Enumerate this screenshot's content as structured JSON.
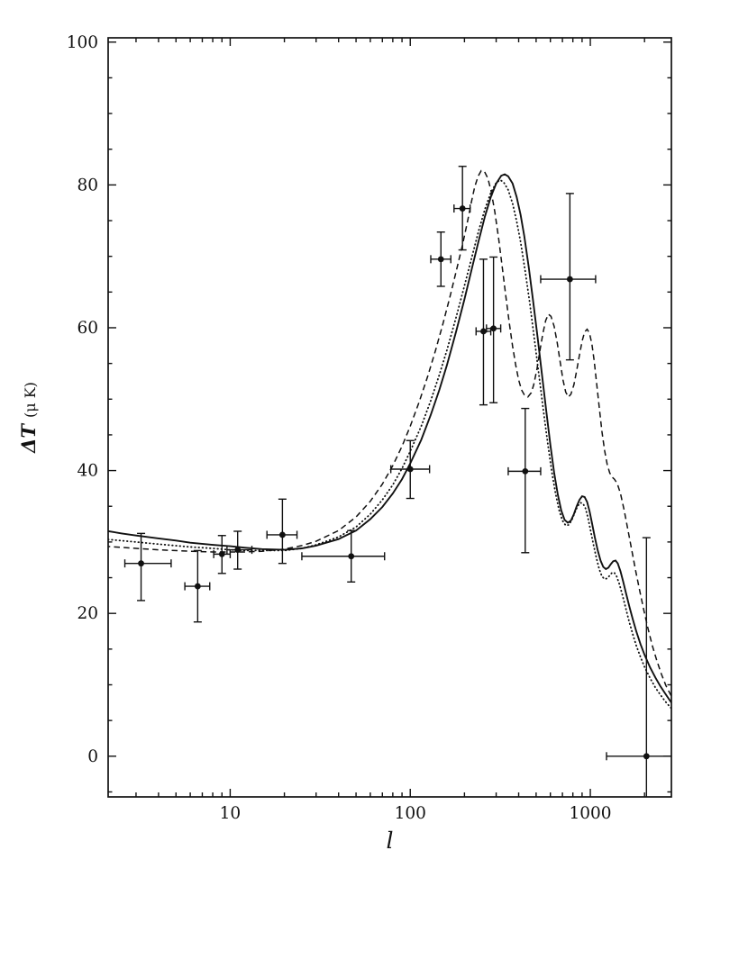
{
  "figure": {
    "background": "#ffffff",
    "ink": "#111111"
  },
  "chart_data": {
    "type": "scatter",
    "title": "",
    "xlabel": "l",
    "ylabel": "ΔT (μ K)",
    "ylabel_main": "ΔT",
    "ylabel_units": "(μ K)",
    "x_scale": "log",
    "xlim": [
      2.1,
      2820
    ],
    "ylim": [
      -5.7,
      100.6
    ],
    "x_major_ticks": [
      10,
      100,
      1000
    ],
    "x_major_tick_labels": [
      "10",
      "100",
      "1000"
    ],
    "y_major_ticks": [
      0,
      20,
      40,
      60,
      80,
      100
    ],
    "y_major_tick_labels": [
      "0",
      "20",
      "40",
      "60",
      "80",
      "100"
    ],
    "y_minor_step": 5,
    "grid": false,
    "legend": null,
    "data_points": [
      {
        "l": 3.2,
        "l_lo": 2.6,
        "l_hi": 4.7,
        "dT": 27.0,
        "dT_lo": 21.8,
        "dT_hi": 31.2
      },
      {
        "l": 6.6,
        "l_lo": 5.6,
        "l_hi": 7.7,
        "dT": 23.8,
        "dT_lo": 18.8,
        "dT_hi": 28.8
      },
      {
        "l": 9.0,
        "l_lo": 8.1,
        "l_hi": 10.0,
        "dT": 28.3,
        "dT_lo": 25.6,
        "dT_hi": 30.9
      },
      {
        "l": 11.0,
        "l_lo": 9.6,
        "l_hi": 13.2,
        "dT": 28.9,
        "dT_lo": 26.2,
        "dT_hi": 31.5
      },
      {
        "l": 19.5,
        "l_lo": 16.0,
        "l_hi": 23.5,
        "dT": 31.0,
        "dT_lo": 27.0,
        "dT_hi": 36.0
      },
      {
        "l": 47.0,
        "l_lo": 25.0,
        "l_hi": 72.0,
        "dT": 28.0,
        "dT_lo": 24.4,
        "dT_hi": 31.6
      },
      {
        "l": 100.0,
        "l_lo": 78.0,
        "l_hi": 128.0,
        "dT": 40.2,
        "dT_lo": 36.1,
        "dT_hi": 44.2
      },
      {
        "l": 148.0,
        "l_lo": 130.0,
        "l_hi": 168.0,
        "dT": 69.6,
        "dT_lo": 65.8,
        "dT_hi": 73.4
      },
      {
        "l": 195.0,
        "l_lo": 175.0,
        "l_hi": 215.0,
        "dT": 76.7,
        "dT_lo": 70.9,
        "dT_hi": 82.6
      },
      {
        "l": 255.0,
        "l_lo": 232.0,
        "l_hi": 280.0,
        "dT": 59.5,
        "dT_lo": 49.2,
        "dT_hi": 69.6
      },
      {
        "l": 290.0,
        "l_lo": 265.0,
        "l_hi": 318.0,
        "dT": 59.9,
        "dT_lo": 49.5,
        "dT_hi": 69.9
      },
      {
        "l": 435.0,
        "l_lo": 350.0,
        "l_hi": 530.0,
        "dT": 39.9,
        "dT_lo": 28.5,
        "dT_hi": 48.7
      },
      {
        "l": 770.0,
        "l_lo": 530.0,
        "l_hi": 1070.0,
        "dT": 66.8,
        "dT_lo": 55.5,
        "dT_hi": 78.8
      },
      {
        "l": 2050.0,
        "l_lo": 1230.0,
        "l_hi": 2800.0,
        "dT": 0.0,
        "dT_lo": -5.7,
        "dT_hi": 30.6
      }
    ],
    "curves": [
      {
        "name": "solid-model",
        "style": "solid",
        "points": [
          [
            2,
            31.6
          ],
          [
            2.5,
            31.2
          ],
          [
            3,
            30.9
          ],
          [
            4,
            30.5
          ],
          [
            5,
            30.2
          ],
          [
            6,
            29.9
          ],
          [
            8,
            29.6
          ],
          [
            10,
            29.4
          ],
          [
            12,
            29.2
          ],
          [
            15,
            29.0
          ],
          [
            20,
            28.9
          ],
          [
            25,
            29.1
          ],
          [
            30,
            29.5
          ],
          [
            40,
            30.4
          ],
          [
            50,
            31.6
          ],
          [
            60,
            33.2
          ],
          [
            70,
            34.9
          ],
          [
            80,
            36.8
          ],
          [
            90,
            38.8
          ],
          [
            100,
            41.0
          ],
          [
            115,
            44.3
          ],
          [
            130,
            47.8
          ],
          [
            145,
            51.3
          ],
          [
            160,
            54.8
          ],
          [
            180,
            59.5
          ],
          [
            200,
            64.0
          ],
          [
            220,
            68.3
          ],
          [
            240,
            72.2
          ],
          [
            260,
            75.6
          ],
          [
            280,
            78.3
          ],
          [
            300,
            80.2
          ],
          [
            320,
            81.3
          ],
          [
            335,
            81.5
          ],
          [
            350,
            81.2
          ],
          [
            370,
            80.2
          ],
          [
            390,
            78.3
          ],
          [
            410,
            75.8
          ],
          [
            430,
            72.8
          ],
          [
            455,
            68.5
          ],
          [
            480,
            64.0
          ],
          [
            510,
            58.6
          ],
          [
            540,
            53.2
          ],
          [
            570,
            48.2
          ],
          [
            600,
            43.6
          ],
          [
            630,
            39.7
          ],
          [
            660,
            36.6
          ],
          [
            690,
            34.4
          ],
          [
            720,
            33.1
          ],
          [
            750,
            32.7
          ],
          [
            780,
            33.0
          ],
          [
            810,
            33.9
          ],
          [
            840,
            35.0
          ],
          [
            870,
            35.9
          ],
          [
            900,
            36.4
          ],
          [
            930,
            36.3
          ],
          [
            960,
            35.6
          ],
          [
            990,
            34.3
          ],
          [
            1020,
            32.7
          ],
          [
            1060,
            30.6
          ],
          [
            1100,
            28.8
          ],
          [
            1140,
            27.4
          ],
          [
            1180,
            26.5
          ],
          [
            1220,
            26.2
          ],
          [
            1260,
            26.4
          ],
          [
            1300,
            26.9
          ],
          [
            1340,
            27.3
          ],
          [
            1380,
            27.4
          ],
          [
            1420,
            27.0
          ],
          [
            1470,
            25.9
          ],
          [
            1520,
            24.5
          ],
          [
            1580,
            22.8
          ],
          [
            1650,
            20.9
          ],
          [
            1720,
            19.2
          ],
          [
            1800,
            17.5
          ],
          [
            1900,
            15.7
          ],
          [
            2000,
            14.2
          ],
          [
            2150,
            12.4
          ],
          [
            2300,
            11.0
          ],
          [
            2450,
            9.8
          ],
          [
            2600,
            8.8
          ],
          [
            2750,
            7.9
          ],
          [
            2820,
            7.5
          ]
        ]
      },
      {
        "name": "dotted-model",
        "style": "dotted",
        "points": [
          [
            2,
            30.4
          ],
          [
            3,
            30.0
          ],
          [
            4,
            29.7
          ],
          [
            6,
            29.3
          ],
          [
            8,
            29.1
          ],
          [
            10,
            28.9
          ],
          [
            12,
            28.8
          ],
          [
            15,
            28.8
          ],
          [
            20,
            28.8
          ],
          [
            25,
            29.1
          ],
          [
            30,
            29.6
          ],
          [
            40,
            30.7
          ],
          [
            50,
            32.1
          ],
          [
            60,
            33.9
          ],
          [
            70,
            35.9
          ],
          [
            80,
            38.0
          ],
          [
            90,
            40.3
          ],
          [
            100,
            42.7
          ],
          [
            115,
            46.2
          ],
          [
            130,
            49.8
          ],
          [
            145,
            53.4
          ],
          [
            160,
            56.9
          ],
          [
            180,
            61.5
          ],
          [
            200,
            65.9
          ],
          [
            220,
            69.9
          ],
          [
            240,
            73.6
          ],
          [
            260,
            76.6
          ],
          [
            280,
            78.9
          ],
          [
            300,
            80.3
          ],
          [
            315,
            80.7
          ],
          [
            330,
            80.4
          ],
          [
            350,
            79.3
          ],
          [
            370,
            77.4
          ],
          [
            390,
            74.9
          ],
          [
            410,
            72.0
          ],
          [
            435,
            67.9
          ],
          [
            460,
            63.6
          ],
          [
            490,
            58.3
          ],
          [
            520,
            53.1
          ],
          [
            550,
            48.2
          ],
          [
            580,
            43.8
          ],
          [
            610,
            40.0
          ],
          [
            640,
            36.9
          ],
          [
            670,
            34.5
          ],
          [
            700,
            33.0
          ],
          [
            730,
            32.3
          ],
          [
            760,
            32.4
          ],
          [
            790,
            33.1
          ],
          [
            820,
            34.1
          ],
          [
            850,
            35.0
          ],
          [
            880,
            35.5
          ],
          [
            910,
            35.4
          ],
          [
            940,
            34.7
          ],
          [
            970,
            33.4
          ],
          [
            1000,
            31.8
          ],
          [
            1040,
            29.7
          ],
          [
            1080,
            27.8
          ],
          [
            1120,
            26.2
          ],
          [
            1160,
            25.2
          ],
          [
            1200,
            24.8
          ],
          [
            1240,
            24.9
          ],
          [
            1280,
            25.3
          ],
          [
            1320,
            25.7
          ],
          [
            1360,
            25.7
          ],
          [
            1400,
            25.2
          ],
          [
            1450,
            24.1
          ],
          [
            1510,
            22.5
          ],
          [
            1570,
            20.8
          ],
          [
            1640,
            18.9
          ],
          [
            1720,
            17.1
          ],
          [
            1800,
            15.5
          ],
          [
            1900,
            13.9
          ],
          [
            2000,
            12.5
          ],
          [
            2150,
            10.9
          ],
          [
            2300,
            9.6
          ],
          [
            2450,
            8.6
          ],
          [
            2600,
            7.7
          ],
          [
            2750,
            7.0
          ],
          [
            2820,
            6.7
          ]
        ]
      },
      {
        "name": "dashed-model",
        "style": "dashed",
        "points": [
          [
            2,
            29.4
          ],
          [
            3,
            29.1
          ],
          [
            4,
            28.9
          ],
          [
            6,
            28.7
          ],
          [
            8,
            28.6
          ],
          [
            10,
            28.6
          ],
          [
            12,
            28.6
          ],
          [
            15,
            28.7
          ],
          [
            20,
            29.0
          ],
          [
            25,
            29.5
          ],
          [
            30,
            30.1
          ],
          [
            40,
            31.6
          ],
          [
            50,
            33.5
          ],
          [
            60,
            35.7
          ],
          [
            70,
            38.1
          ],
          [
            80,
            40.7
          ],
          [
            90,
            43.4
          ],
          [
            100,
            46.2
          ],
          [
            112,
            49.6
          ],
          [
            125,
            53.2
          ],
          [
            138,
            56.8
          ],
          [
            152,
            60.6
          ],
          [
            166,
            64.3
          ],
          [
            180,
            67.9
          ],
          [
            195,
            71.6
          ],
          [
            208,
            74.9
          ],
          [
            218,
            77.5
          ],
          [
            228,
            79.7
          ],
          [
            238,
            81.2
          ],
          [
            248,
            82.0
          ],
          [
            258,
            81.9
          ],
          [
            270,
            80.9
          ],
          [
            282,
            79.0
          ],
          [
            295,
            76.2
          ],
          [
            310,
            72.4
          ],
          [
            325,
            68.3
          ],
          [
            340,
            64.3
          ],
          [
            355,
            60.6
          ],
          [
            370,
            57.4
          ],
          [
            385,
            54.8
          ],
          [
            400,
            52.7
          ],
          [
            415,
            51.3
          ],
          [
            430,
            50.6
          ],
          [
            450,
            50.3
          ],
          [
            470,
            50.9
          ],
          [
            485,
            52.0
          ],
          [
            505,
            54.2
          ],
          [
            525,
            56.8
          ],
          [
            545,
            59.2
          ],
          [
            565,
            61.0
          ],
          [
            585,
            61.9
          ],
          [
            605,
            61.6
          ],
          [
            630,
            60.2
          ],
          [
            655,
            57.9
          ],
          [
            680,
            55.2
          ],
          [
            705,
            52.7
          ],
          [
            730,
            51.0
          ],
          [
            755,
            50.3
          ],
          [
            780,
            50.7
          ],
          [
            810,
            52.0
          ],
          [
            840,
            54.0
          ],
          [
            870,
            56.2
          ],
          [
            900,
            58.1
          ],
          [
            930,
            59.4
          ],
          [
            960,
            59.8
          ],
          [
            990,
            59.2
          ],
          [
            1020,
            57.7
          ],
          [
            1050,
            55.4
          ],
          [
            1080,
            52.6
          ],
          [
            1120,
            48.9
          ],
          [
            1160,
            45.5
          ],
          [
            1200,
            42.8
          ],
          [
            1240,
            40.9
          ],
          [
            1280,
            39.7
          ],
          [
            1320,
            39.1
          ],
          [
            1360,
            38.8
          ],
          [
            1410,
            38.2
          ],
          [
            1470,
            36.8
          ],
          [
            1540,
            34.5
          ],
          [
            1620,
            31.6
          ],
          [
            1700,
            28.8
          ],
          [
            1790,
            25.8
          ],
          [
            1880,
            23.2
          ],
          [
            1980,
            20.5
          ],
          [
            2090,
            17.9
          ],
          [
            2210,
            15.5
          ],
          [
            2340,
            13.4
          ],
          [
            2480,
            11.5
          ],
          [
            2630,
            9.9
          ],
          [
            2820,
            8.4
          ]
        ]
      }
    ]
  }
}
